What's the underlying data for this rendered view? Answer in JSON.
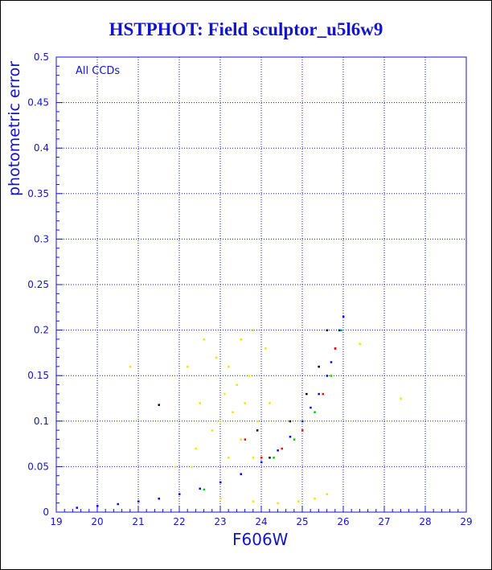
{
  "chart_data": {
    "type": "scatter",
    "title": "HSTPHOT: Field sculptor_u5l6w9",
    "xlabel": "F606W",
    "ylabel": "photometric error",
    "annotation": "All CCDs",
    "xlim": [
      19,
      29
    ],
    "ylim": [
      0,
      0.5
    ],
    "x_ticks": [
      "19",
      "20",
      "21",
      "22",
      "23",
      "24",
      "25",
      "26",
      "27",
      "28",
      "29"
    ],
    "y_ticks": [
      "0",
      "0.05",
      "0.1",
      "0.15",
      "0.2",
      "0.25",
      "0.3",
      "0.35",
      "0.4",
      "0.45",
      "0.5"
    ],
    "grid": true,
    "series": [
      {
        "color": "#e8e800",
        "points": [
          [
            22.6,
            0.19
          ],
          [
            22.9,
            0.17
          ],
          [
            23.2,
            0.16
          ],
          [
            23.5,
            0.19
          ],
          [
            23.8,
            0.2
          ],
          [
            23.1,
            0.13
          ],
          [
            23.4,
            0.14
          ],
          [
            23.7,
            0.15
          ],
          [
            23.3,
            0.11
          ],
          [
            23.0,
            0.1
          ],
          [
            23.6,
            0.12
          ],
          [
            22.8,
            0.09
          ],
          [
            23.5,
            0.08
          ],
          [
            23.9,
            0.1
          ],
          [
            22.5,
            0.12
          ],
          [
            22.4,
            0.07
          ],
          [
            23.2,
            0.06
          ],
          [
            23.8,
            0.06
          ],
          [
            24.1,
            0.18
          ],
          [
            24.2,
            0.12
          ],
          [
            22.2,
            0.16
          ],
          [
            22.3,
            0.05
          ],
          [
            23.0,
            0.015
          ],
          [
            23.8,
            0.012
          ],
          [
            24.4,
            0.01
          ],
          [
            24.9,
            0.012
          ],
          [
            25.3,
            0.015
          ],
          [
            25.6,
            0.02
          ],
          [
            26.4,
            0.185
          ],
          [
            27.4,
            0.125
          ],
          [
            20.8,
            0.16
          ],
          [
            21.9,
            0.05
          ]
        ]
      },
      {
        "color": "#0000ff",
        "points": [
          [
            19.5,
            0.005
          ],
          [
            20.0,
            0.007
          ],
          [
            20.5,
            0.009
          ],
          [
            21.0,
            0.012
          ],
          [
            21.5,
            0.015
          ],
          [
            22.0,
            0.02
          ],
          [
            22.5,
            0.026
          ],
          [
            23.0,
            0.033
          ],
          [
            23.5,
            0.042
          ],
          [
            24.0,
            0.055
          ],
          [
            24.4,
            0.068
          ],
          [
            24.7,
            0.083
          ],
          [
            25.0,
            0.1
          ],
          [
            25.2,
            0.115
          ],
          [
            25.4,
            0.13
          ],
          [
            25.6,
            0.15
          ],
          [
            25.7,
            0.165
          ],
          [
            25.8,
            0.18
          ],
          [
            25.9,
            0.2
          ],
          [
            26.0,
            0.215
          ]
        ]
      },
      {
        "color": "#00c800",
        "points": [
          [
            24.3,
            0.06
          ],
          [
            24.8,
            0.08
          ],
          [
            25.3,
            0.11
          ],
          [
            25.7,
            0.15
          ],
          [
            25.95,
            0.2
          ],
          [
            22.6,
            0.025
          ]
        ]
      },
      {
        "color": "#ff0000",
        "points": [
          [
            24.0,
            0.06
          ],
          [
            24.5,
            0.07
          ],
          [
            25.0,
            0.09
          ],
          [
            25.5,
            0.13
          ],
          [
            25.8,
            0.18
          ],
          [
            23.6,
            0.08
          ]
        ]
      },
      {
        "color": "#000000",
        "points": [
          [
            21.5,
            0.118
          ],
          [
            24.2,
            0.06
          ],
          [
            24.7,
            0.1
          ],
          [
            25.1,
            0.13
          ],
          [
            25.4,
            0.16
          ],
          [
            25.6,
            0.2
          ],
          [
            23.9,
            0.09
          ]
        ]
      }
    ]
  }
}
